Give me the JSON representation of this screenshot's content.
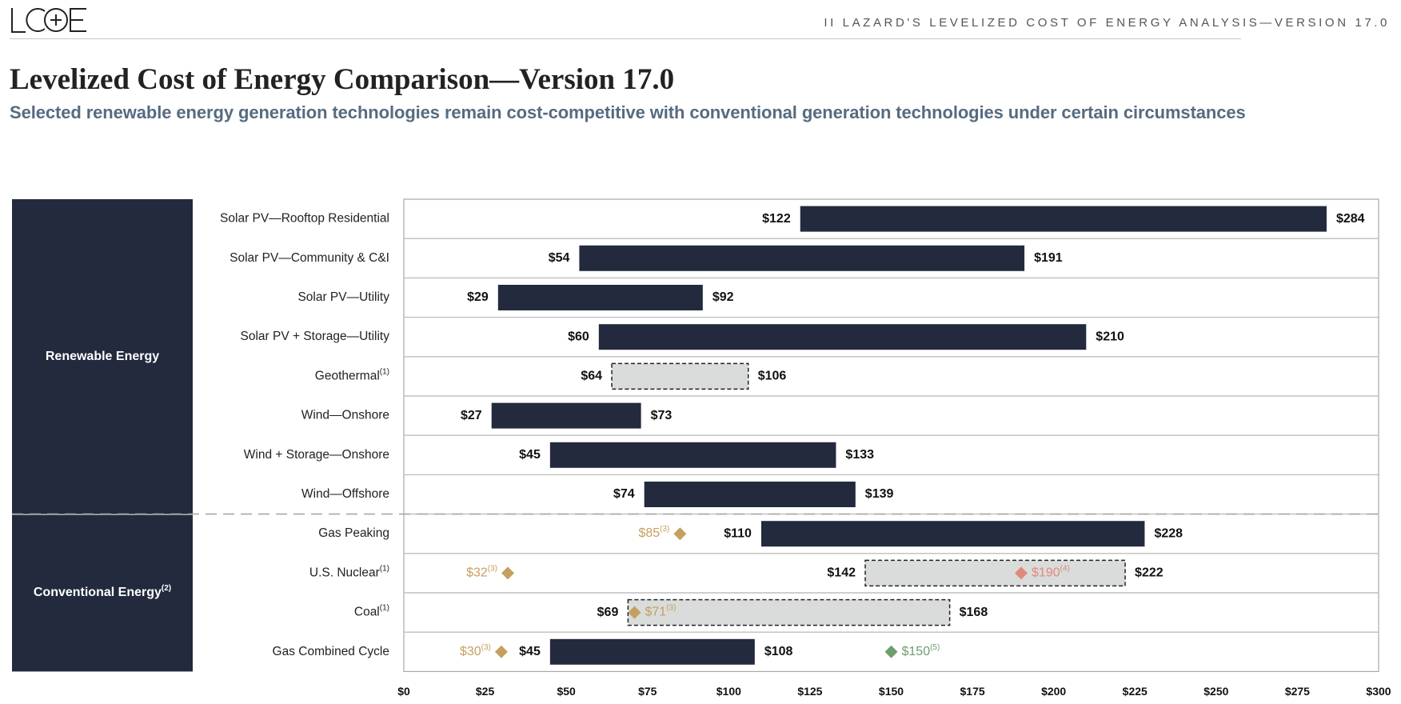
{
  "header": {
    "logo_text": "LCOE",
    "section_title": "II   LAZARD'S LEVELIZED COST OF ENERGY ANALYSIS—VERSION 17.0"
  },
  "page": {
    "title": "Levelized Cost of Energy Comparison—Version 17.0",
    "subtitle": "Selected renewable energy generation technologies remain cost-competitive with conventional generation technologies under certain circumstances"
  },
  "colors": {
    "bar": "#232a3e",
    "dashed_fill": "#d9dcdb",
    "group_panel": "#232a3e",
    "marker_gold": "#c59f5f",
    "marker_red": "#e08a7c",
    "marker_green": "#6f9e6e"
  },
  "chart_data": {
    "type": "bar",
    "orientation": "horizontal-range",
    "xlim": [
      0,
      300
    ],
    "x_ticks": [
      0,
      25,
      50,
      75,
      100,
      125,
      150,
      175,
      200,
      225,
      250,
      275,
      300
    ],
    "x_tick_labels": [
      "$0",
      "$25",
      "$50",
      "$75",
      "$100",
      "$125",
      "$150",
      "$175",
      "$200",
      "$225",
      "$250",
      "$275",
      "$300"
    ],
    "groups": [
      {
        "label": "Renewable Energy",
        "superscript": "",
        "start": 0,
        "count": 8
      },
      {
        "label": "Conventional Energy",
        "superscript": "(2)",
        "start": 8,
        "count": 4
      }
    ],
    "rows": [
      {
        "label": "Solar PV—Rooftop Residential",
        "sup": "",
        "low": 122,
        "high": 284,
        "low_label": "$122",
        "high_label": "$284",
        "style": "solid",
        "markers": []
      },
      {
        "label": "Solar PV—Community & C&I",
        "sup": "",
        "low": 54,
        "high": 191,
        "low_label": "$54",
        "high_label": "$191",
        "style": "solid",
        "markers": []
      },
      {
        "label": "Solar PV—Utility",
        "sup": "",
        "low": 29,
        "high": 92,
        "low_label": "$29",
        "high_label": "$92",
        "style": "solid",
        "markers": []
      },
      {
        "label": "Solar PV + Storage—Utility",
        "sup": "",
        "low": 60,
        "high": 210,
        "low_label": "$60",
        "high_label": "$210",
        "style": "solid",
        "markers": []
      },
      {
        "label": "Geothermal",
        "sup": "(1)",
        "low": 64,
        "high": 106,
        "low_label": "$64",
        "high_label": "$106",
        "style": "dashed",
        "markers": []
      },
      {
        "label": "Wind—Onshore",
        "sup": "",
        "low": 27,
        "high": 73,
        "low_label": "$27",
        "high_label": "$73",
        "style": "solid",
        "markers": []
      },
      {
        "label": "Wind + Storage—Onshore",
        "sup": "",
        "low": 45,
        "high": 133,
        "low_label": "$45",
        "high_label": "$133",
        "style": "solid",
        "markers": []
      },
      {
        "label": "Wind—Offshore",
        "sup": "",
        "low": 74,
        "high": 139,
        "low_label": "$74",
        "high_label": "$139",
        "style": "solid",
        "markers": []
      },
      {
        "label": "Gas Peaking",
        "sup": "",
        "low": 110,
        "high": 228,
        "low_label": "$110",
        "high_label": "$228",
        "style": "solid",
        "markers": [
          {
            "value": 85,
            "label": "$85",
            "sup": "(3)",
            "color": "#c59f5f",
            "label_side": "left"
          }
        ]
      },
      {
        "label": "U.S. Nuclear",
        "sup": "(1)",
        "low": 142,
        "high": 222,
        "low_label": "$142",
        "high_label": "$222",
        "style": "dashed",
        "markers": [
          {
            "value": 32,
            "label": "$32",
            "sup": "(3)",
            "color": "#c59f5f",
            "label_side": "left"
          },
          {
            "value": 190,
            "label": "$190",
            "sup": "(4)",
            "color": "#e08a7c",
            "label_side": "right"
          }
        ]
      },
      {
        "label": "Coal",
        "sup": "(1)",
        "low": 69,
        "high": 168,
        "low_label": "$69",
        "high_label": "$168",
        "style": "dashed",
        "markers": [
          {
            "value": 71,
            "label": "$71",
            "sup": "(3)",
            "color": "#c59f5f",
            "label_side": "right"
          }
        ]
      },
      {
        "label": "Gas Combined Cycle",
        "sup": "",
        "low": 45,
        "high": 108,
        "low_label": "$45",
        "high_label": "$108",
        "style": "solid",
        "markers": [
          {
            "value": 30,
            "label": "$30",
            "sup": "(3)",
            "color": "#c59f5f",
            "label_side": "left"
          },
          {
            "value": 150,
            "label": "$150",
            "sup": "(5)",
            "color": "#6f9e6e",
            "label_side": "right"
          }
        ]
      }
    ]
  }
}
